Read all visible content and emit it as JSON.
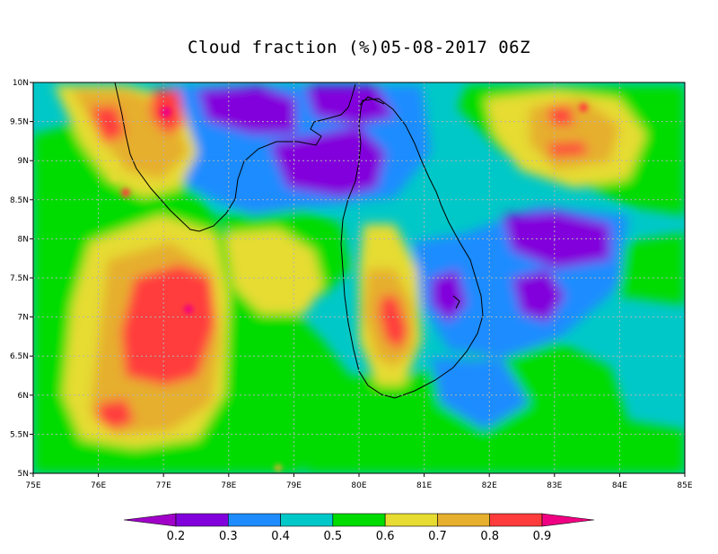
{
  "title": "Cloud fraction (%)05-08-2017 06Z",
  "map": {
    "lon_range": [
      75,
      85
    ],
    "lat_range": [
      5,
      10
    ],
    "lon_ticks": [
      "75E",
      "76E",
      "77E",
      "78E",
      "79E",
      "80E",
      "81E",
      "82E",
      "83E",
      "84E",
      "85E"
    ],
    "lat_ticks": [
      "5N",
      "5.5N",
      "6N",
      "6.5N",
      "7N",
      "7.5N",
      "8N",
      "8.5N",
      "9N",
      "9.5N",
      "10N"
    ],
    "grid": true
  },
  "colorbar": {
    "colors": [
      "#a000c8",
      "#8200dc",
      "#1e8cff",
      "#00c8c8",
      "#00dc00",
      "#e6dc32",
      "#e6af2d",
      "#ff3c3c",
      "#f00082"
    ],
    "labels": [
      "0.2",
      "0.3",
      "0.4",
      "0.5",
      "0.6",
      "0.7",
      "0.8",
      "0.9"
    ]
  }
}
